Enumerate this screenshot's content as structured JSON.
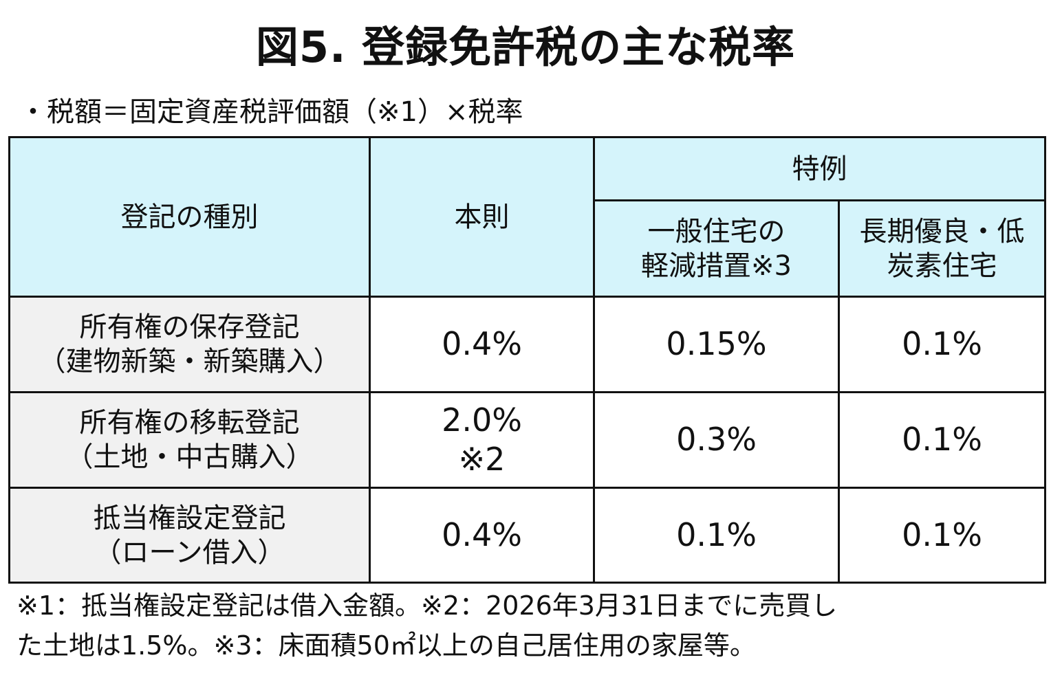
{
  "title": "図5. 登録免許税の主な税率",
  "formula": "・税額＝固定資産税評価額（※1）×税率",
  "table": {
    "headers": {
      "type": "登記の種別",
      "standard": "本則",
      "special": "特例",
      "special_general": [
        "一般住宅の",
        "軽減措置※3"
      ],
      "special_longterm": [
        "長期優良・低",
        "炭素住宅"
      ]
    },
    "rows": [
      {
        "type": [
          "所有権の保存登記",
          "（建物新築・新築購入）"
        ],
        "standard": [
          "0.4%"
        ],
        "general": "0.15%",
        "longterm": "0.1%"
      },
      {
        "type": [
          "所有権の移転登記",
          "（土地・中古購入）"
        ],
        "standard": [
          "2.0%",
          "※2"
        ],
        "general": "0.3%",
        "longterm": "0.1%"
      },
      {
        "type": [
          "抵当権設定登記",
          "（ローン借入）"
        ],
        "standard": [
          "0.4%"
        ],
        "general": "0.1%",
        "longterm": "0.1%"
      }
    ]
  },
  "footnotes": [
    "※1：抵当権設定登記は借入金額。※2：2026年3月31日までに売買し",
    "た土地は1.5%。※3：床面積50㎡以上の自己居住用の家屋等。"
  ]
}
